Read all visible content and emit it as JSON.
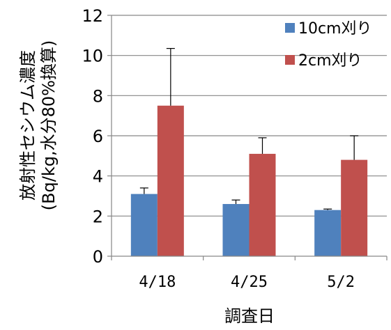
{
  "chart_data": {
    "type": "bar",
    "categories": [
      "4/18",
      "4/25",
      "5/2"
    ],
    "series": [
      {
        "name": "10cm刈り",
        "values": [
          3.1,
          2.6,
          2.3
        ],
        "errors": [
          0.3,
          0.2,
          0.05
        ],
        "color": "#4F81BD"
      },
      {
        "name": "2cm刈り",
        "values": [
          7.5,
          5.1,
          4.8
        ],
        "errors": [
          2.85,
          0.8,
          1.2
        ],
        "color": "#C0504D"
      }
    ],
    "ylim": [
      0,
      12
    ],
    "yticks": [
      0,
      2,
      4,
      6,
      8,
      10,
      12
    ],
    "ylabel_line1": "放射性セシウム濃度",
    "ylabel_line2": "(Bq/kg,水分80%換算)",
    "xlabel": "調査日",
    "legend_position": "top-right",
    "grid": true,
    "gridline_color": "#868686"
  }
}
